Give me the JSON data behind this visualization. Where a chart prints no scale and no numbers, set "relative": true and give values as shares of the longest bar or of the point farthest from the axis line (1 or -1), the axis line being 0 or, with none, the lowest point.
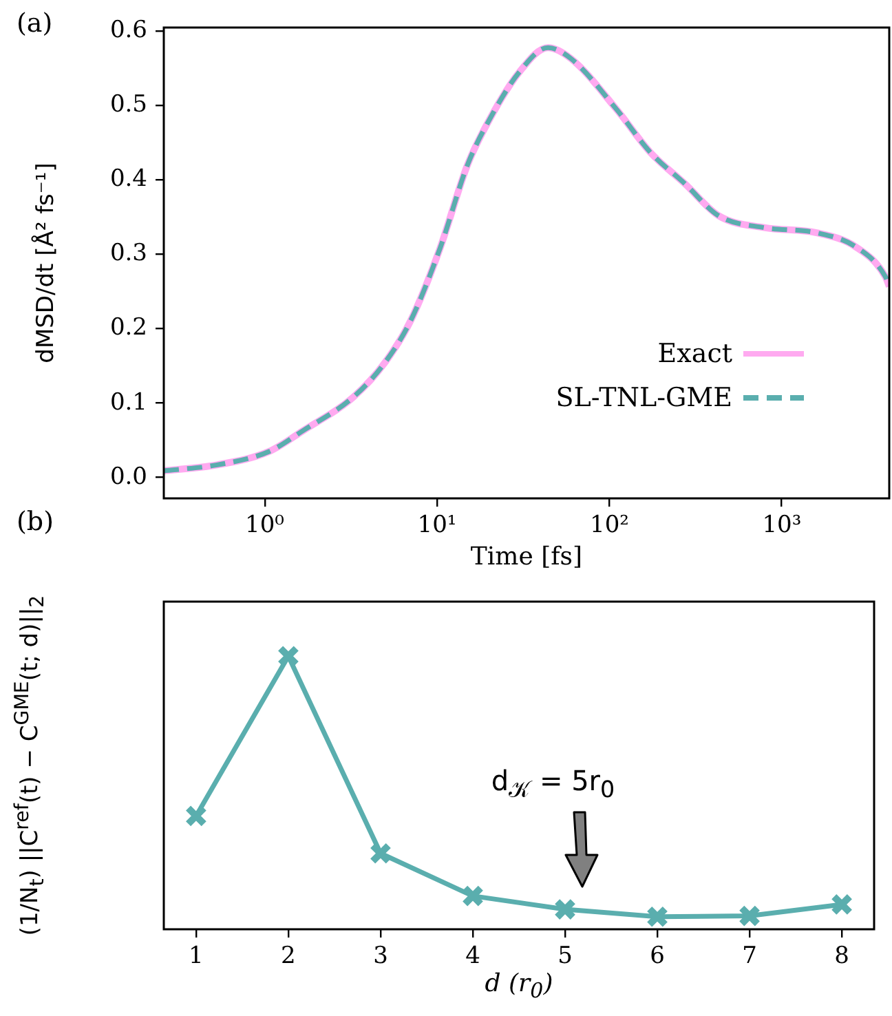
{
  "chart_data": [
    {
      "type": "line",
      "title": "(a)",
      "xlabel": "Time [fs]",
      "ylabel": "dMSD/dt [Å² fs⁻¹]",
      "log": "x",
      "legend": "lower right",
      "grid": false,
      "x": [
        0.26,
        0.53,
        1.06,
        1.67,
        3.3,
        5,
        7,
        10.4,
        15,
        20,
        30,
        44,
        60,
        110,
        173,
        274,
        430,
        790,
        1590,
        2690,
        3990,
        4200
      ],
      "series": [
        {
          "name": "Exact",
          "color": "#ffaaf0",
          "line_style": "solid",
          "values": [
            0.009,
            0.017,
            0.035,
            0.063,
            0.109,
            0.155,
            0.21,
            0.308,
            0.42,
            0.48,
            0.545,
            0.578,
            0.563,
            0.495,
            0.437,
            0.395,
            0.352,
            0.336,
            0.329,
            0.31,
            0.27,
            0.257
          ]
        },
        {
          "name": "SL-TNL-GME",
          "color": "#5aaeae",
          "line_style": "dashed",
          "values": [
            0.009,
            0.017,
            0.035,
            0.063,
            0.109,
            0.155,
            0.21,
            0.308,
            0.42,
            0.48,
            0.545,
            0.578,
            0.563,
            0.495,
            0.437,
            0.395,
            0.352,
            0.336,
            0.329,
            0.31,
            0.27,
            0.257
          ]
        }
      ],
      "xlim": [
        0.26,
        4200
      ],
      "xticks": [
        {
          "value": 1,
          "label": "10⁰"
        },
        {
          "value": 10,
          "label": "10¹"
        },
        {
          "value": 100,
          "label": "10²"
        },
        {
          "value": 1000,
          "label": "10³"
        }
      ],
      "ylim": [
        -0.028,
        0.605
      ],
      "yticks": [
        {
          "value": 0,
          "label": "0.0"
        },
        0.1,
        0.2,
        0.3,
        0.4,
        0.5,
        0.6
      ]
    },
    {
      "type": "line",
      "title": "(b)",
      "xlabel": "d (r$_{0}$)",
      "ylabel": "(1/N$_{t}$) ||C$^{ref}$(t) − C$^{GME}$(t; d)||$_{2}$",
      "relative": true,
      "grid": false,
      "marker": "cross",
      "line_style": "solid",
      "x": [
        1,
        2,
        3,
        4,
        5,
        6,
        7,
        8
      ],
      "xlim": [
        0.65,
        8.35
      ],
      "xticks": [
        1,
        2,
        3,
        4,
        5,
        6,
        7,
        8
      ],
      "series": [
        {
          "color": "#5aaeae",
          "values": [
            0.415,
            1,
            0.278,
            0.122,
            0.073,
            0.046,
            0.049,
            0.091
          ]
        }
      ],
      "annotations": [
        "d$_{𝒦}$ = 5r$_{0}$"
      ]
    }
  ]
}
